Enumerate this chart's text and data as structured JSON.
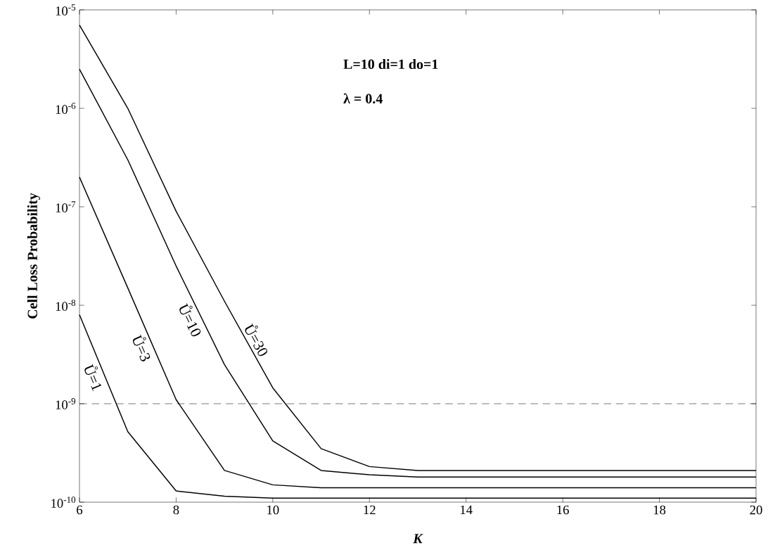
{
  "chart_data": {
    "type": "line",
    "xlabel": "K",
    "ylabel": "Cell Loss Probability",
    "log": "y",
    "x": [
      6,
      7,
      8,
      9,
      10,
      11,
      12,
      13,
      14,
      15,
      16,
      17,
      18,
      19,
      20
    ],
    "series": [
      {
        "name": "Ů=30",
        "color": "#000000",
        "values": [
          7e-06,
          1e-06,
          9e-08,
          1.1e-08,
          1.45e-09,
          3.5e-10,
          2.3e-10,
          2.1e-10,
          2.1e-10,
          2.1e-10,
          2.1e-10,
          2.1e-10,
          2.1e-10,
          2.1e-10,
          2.1e-10
        ]
      },
      {
        "name": "Ů=10",
        "color": "#000000",
        "values": [
          2.5e-06,
          3e-07,
          2.5e-08,
          2.5e-09,
          4.2e-10,
          2.1e-10,
          1.9e-10,
          1.8e-10,
          1.8e-10,
          1.8e-10,
          1.8e-10,
          1.8e-10,
          1.8e-10,
          1.8e-10,
          1.8e-10
        ]
      },
      {
        "name": "Ů=3",
        "color": "#000000",
        "values": [
          2e-07,
          1.5e-08,
          1.1e-09,
          2.1e-10,
          1.5e-10,
          1.4e-10,
          1.4e-10,
          1.4e-10,
          1.4e-10,
          1.4e-10,
          1.4e-10,
          1.4e-10,
          1.4e-10,
          1.4e-10,
          1.4e-10
        ]
      },
      {
        "name": "Ů=1",
        "color": "#000000",
        "values": [
          8e-09,
          5.2e-10,
          1.3e-10,
          1.15e-10,
          1.1e-10,
          1.1e-10,
          1.1e-10,
          1.1e-10,
          1.1e-10,
          1.1e-10,
          1.1e-10,
          1.1e-10,
          1.1e-10,
          1.1e-10,
          1.1e-10
        ]
      }
    ],
    "xlim": [
      6,
      20
    ],
    "ylim": [
      1e-10,
      1e-05
    ],
    "xticks": [
      6,
      8,
      10,
      12,
      14,
      16,
      18,
      20
    ],
    "yticks": [
      {
        "value": 1e-10,
        "label": "10$^{-10}$"
      },
      {
        "value": 1e-09,
        "label": "10$^{-9}$"
      },
      {
        "value": 1e-08,
        "label": "10$^{-8}$"
      },
      {
        "value": 1e-07,
        "label": "10$^{-7}$"
      },
      {
        "value": 1e-06,
        "label": "10$^{-6}$"
      },
      {
        "value": 1e-05,
        "label": "10$^{-5}$"
      }
    ],
    "grid": false,
    "legend": false,
    "marker": "none",
    "line_style": "solid",
    "ref_lines": [
      {
        "axis": "y",
        "value": 1e-09,
        "line_style": "dashed",
        "color": "#000000"
      }
    ],
    "annotations": [
      "L=10   di=1   do=1",
      "λ = 0.4"
    ]
  }
}
